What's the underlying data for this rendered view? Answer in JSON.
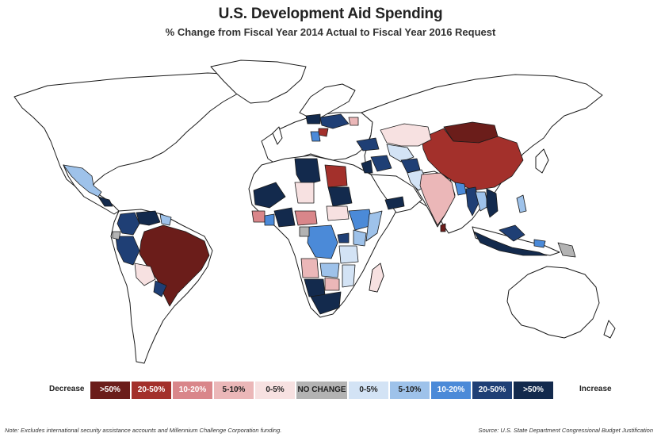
{
  "title": "U.S. Development Aid Spending",
  "subtitle": "% Change from Fiscal Year 2014 Actual to Fiscal Year 2016 Request",
  "legend": {
    "decrease_label": "Decrease",
    "increase_label": "Increase",
    "items": [
      {
        "label": ">50%",
        "color": "#6b1d1a",
        "text_color": "#ffffff"
      },
      {
        "label": "20-50%",
        "color": "#a3302b",
        "text_color": "#ffffff"
      },
      {
        "label": "10-20%",
        "color": "#d9868a",
        "text_color": "#ffffff"
      },
      {
        "label": "5-10%",
        "color": "#ebb7b8",
        "text_color": "#222222"
      },
      {
        "label": "0-5%",
        "color": "#f7e1e1",
        "text_color": "#222222"
      },
      {
        "label": "NO CHANGE",
        "color": "#b3b3b3",
        "text_color": "#222222"
      },
      {
        "label": "0-5%",
        "color": "#d3e3f5",
        "text_color": "#222222"
      },
      {
        "label": "5-10%",
        "color": "#9ec2ea",
        "text_color": "#222222"
      },
      {
        "label": "10-20%",
        "color": "#4b8ad8",
        "text_color": "#ffffff"
      },
      {
        "label": "20-50%",
        "color": "#1f3f75",
        "text_color": "#ffffff"
      },
      {
        "label": ">50%",
        "color": "#132a4d",
        "text_color": "#ffffff"
      }
    ]
  },
  "note": "Note: Excludes international security assistance accounts and Millennium Challenge Corporation funding.",
  "source": "Source: U.S. State Department Congressional Budget Justification"
}
